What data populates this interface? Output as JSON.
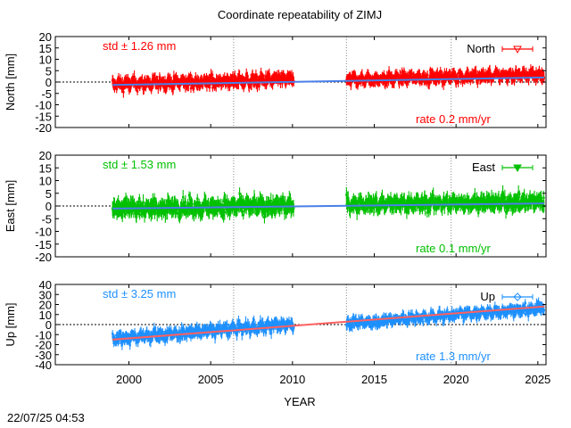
{
  "title": "Coordinate repeatability of ZIMJ",
  "timestamp": "22/07/25 04:53",
  "chart_data": [
    {
      "type": "scatter",
      "component": "North",
      "ylabel": "North [mm]",
      "xlabel": "YEAR",
      "xlim": [
        1995.5,
        2025.5
      ],
      "ylim": [
        -20,
        20
      ],
      "y_ticks": [
        -20,
        -15,
        -10,
        -5,
        0,
        5,
        10,
        15,
        20
      ],
      "legend": "North",
      "legend_position": "top-right",
      "std_label": "std ± 1.26 mm",
      "rate_label": "rate  0.2 mm/yr",
      "color": "#ff0000",
      "fit_color": "#4a7fe8",
      "segments": [
        {
          "start": 1999.0,
          "end": 2010.1,
          "offset": -1.0,
          "slope": 0.2,
          "noise": 2.6
        },
        {
          "start": 2013.3,
          "end": 2025.4,
          "offset": 1.0,
          "slope": 0.2,
          "noise": 2.4
        }
      ],
      "fit": [
        [
          1999.0,
          -1.3
        ],
        [
          2025.4,
          2.0
        ]
      ]
    },
    {
      "type": "scatter",
      "component": "East",
      "ylabel": "East [mm]",
      "xlim": [
        1995.5,
        2025.5
      ],
      "ylim": [
        -20,
        20
      ],
      "y_ticks": [
        -20,
        -15,
        -10,
        -5,
        0,
        5,
        10,
        15,
        20
      ],
      "legend": "East",
      "legend_position": "top-right",
      "std_label": "std ± 1.53 mm",
      "rate_label": "rate  0.1 mm/yr",
      "color": "#00c000",
      "fit_color": "#4a7fe8",
      "segments": [
        {
          "start": 1999.0,
          "end": 2010.1,
          "offset": -1.0,
          "slope": 0.1,
          "noise": 3.0
        },
        {
          "start": 2013.3,
          "end": 2025.4,
          "offset": 0.5,
          "slope": 0.1,
          "noise": 2.8
        }
      ],
      "fit": [
        [
          1999.0,
          -1.0
        ],
        [
          2025.4,
          1.0
        ]
      ]
    },
    {
      "type": "scatter",
      "component": "Up",
      "ylabel": "Up [mm]",
      "xlim": [
        1995.5,
        2025.5
      ],
      "ylim": [
        -40,
        40
      ],
      "y_ticks": [
        -40,
        -30,
        -20,
        -10,
        0,
        10,
        20,
        30,
        40
      ],
      "x_ticks": [
        2000,
        2005,
        2010,
        2015,
        2020,
        2025
      ],
      "legend": "Up",
      "legend_position": "top-right",
      "std_label": "std ± 3.25 mm",
      "rate_label": "rate  1.3 mm/yr",
      "color": "#1e90ff",
      "fit_color": "#ff6060",
      "segments": [
        {
          "start": 1999.0,
          "end": 2010.1,
          "offset": -14.0,
          "slope": 1.3,
          "noise": 5.5
        },
        {
          "start": 2013.3,
          "end": 2025.4,
          "offset": 1.0,
          "slope": 1.3,
          "noise": 5.0
        }
      ],
      "fit": [
        [
          1999.0,
          -15.0
        ],
        [
          2025.4,
          18.0
        ]
      ]
    }
  ],
  "vertical_dotted_lines": [
    2006.4,
    2013.3,
    2019.7
  ]
}
